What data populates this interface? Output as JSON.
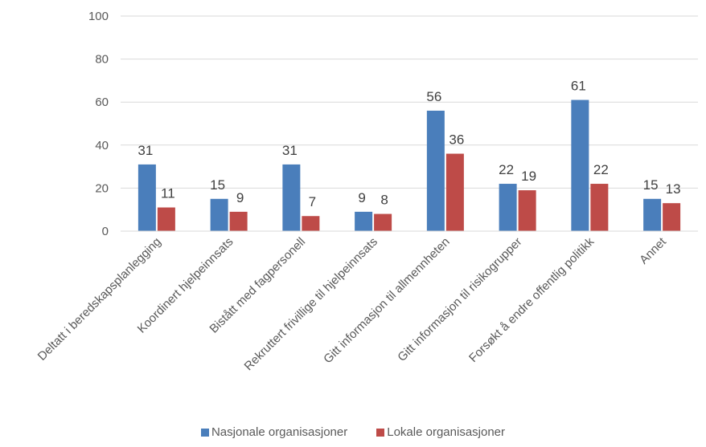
{
  "chart_data": {
    "type": "bar",
    "categories": [
      "Deltatt i beredskapsplanlegging",
      "Koordinert hjelpeinnsats",
      "Bistått med fagpersonell",
      "Rekruttert frivillige til hjelpeinnsats",
      "Gitt informasjon til allmennheten",
      "Gitt informasjon til risikogrupper",
      "Forsøkt å endre offentlig politikk",
      "Annet"
    ],
    "series": [
      {
        "name": "Nasjonale organisasjoner",
        "color": "#4a7ebb",
        "values": [
          31,
          15,
          31,
          9,
          56,
          22,
          61,
          15
        ]
      },
      {
        "name": "Lokale organisasjoner",
        "color": "#be4b48",
        "values": [
          11,
          9,
          7,
          8,
          36,
          19,
          22,
          13
        ]
      }
    ],
    "yticks": [
      0,
      20,
      40,
      60,
      80,
      100
    ],
    "ylim": [
      0,
      100
    ],
    "grid": true,
    "legend_position": "bottom"
  }
}
